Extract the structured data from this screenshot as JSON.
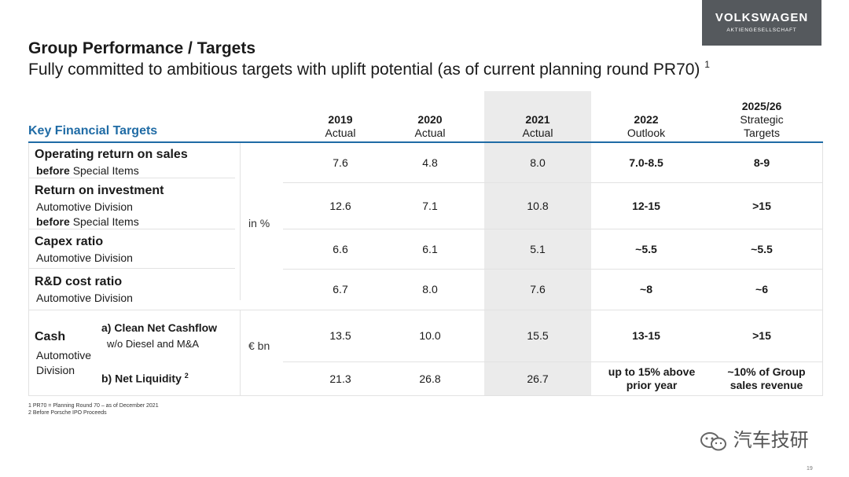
{
  "logo": {
    "brand": "VOLKSWAGEN",
    "sub": "AKTIENGESELLSCHAFT"
  },
  "title": "Group Performance / Targets",
  "subtitle": "Fully committed to ambitious targets with uplift potential (as of current planning round PR70)",
  "subtitle_sup": "1",
  "table": {
    "key_title": "Key Financial Targets",
    "columns": [
      {
        "year": "2019",
        "label": "Actual"
      },
      {
        "year": "2020",
        "label": "Actual"
      },
      {
        "year": "2021",
        "label": "Actual"
      },
      {
        "year": "2022",
        "label": "Outlook"
      },
      {
        "year": "2025/26",
        "label": "Strategic Targets"
      }
    ],
    "unit_pct": "in %",
    "unit_bn": "€ bn",
    "rows": [
      {
        "label": "Operating return on sales",
        "sub1": "Special Items",
        "sub1_bold": "before",
        "values": [
          "7.6",
          "4.8",
          "8.0",
          "7.0-8.5",
          "8-9"
        ]
      },
      {
        "label": "Return on investment",
        "sub1": "Automotive Division",
        "sub2_bold": "before",
        "sub2": "Special Items",
        "values": [
          "12.6",
          "7.1",
          "10.8",
          "12-15",
          ">15"
        ]
      },
      {
        "label": "Capex ratio",
        "sub1": "Automotive Division",
        "values": [
          "6.6",
          "6.1",
          "5.1",
          "~5.5",
          "~5.5"
        ]
      },
      {
        "label": "R&D cost ratio",
        "sub1": "Automotive Division",
        "values": [
          "6.7",
          "8.0",
          "7.6",
          "~8",
          "~6"
        ]
      }
    ],
    "cash": {
      "label": "Cash",
      "sub": "Automotive Division",
      "a_label": "a) Clean Net Cashflow",
      "a_sub": "w/o Diesel and M&A",
      "a_values": [
        "13.5",
        "10.0",
        "15.5",
        "13-15",
        ">15"
      ],
      "b_label": "b) Net Liquidity",
      "b_sup": "2",
      "b_values": [
        "21.3",
        "26.8",
        "26.7",
        "up to 15% above prior year",
        "~10% of Group sales revenue"
      ]
    }
  },
  "footnotes": [
    "1 PR70 = Planning Round 70 – as of December 2021",
    "2 Before Porsche IPO Proceeds"
  ],
  "watermark": "汽车技研",
  "page_number": "19"
}
